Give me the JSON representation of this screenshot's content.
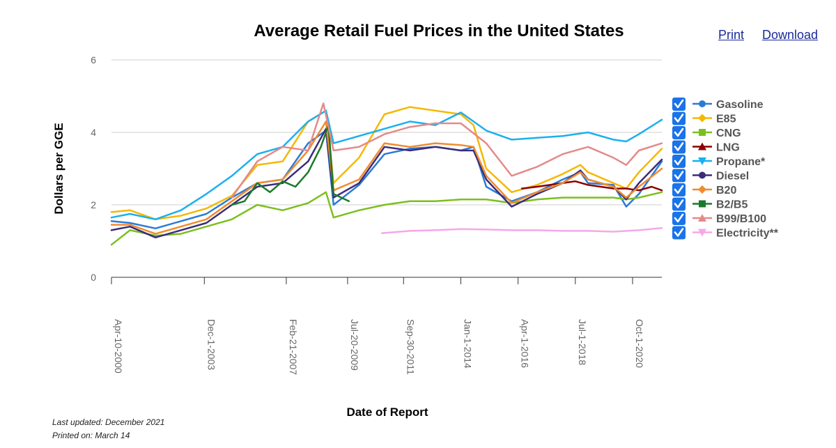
{
  "links": {
    "print": "Print",
    "download": "Download"
  },
  "footer": {
    "updated": "Last updated: December 2021",
    "printed": "Printed on: March 14"
  },
  "chart_data": {
    "type": "line",
    "title": "Average Retail Fuel Prices in the United States",
    "xlabel": "Date of Report",
    "ylabel": "Dollars per GGE",
    "ylim": [
      0,
      6
    ],
    "yticks": [
      0,
      2,
      4,
      6
    ],
    "xlim": [
      2000.27,
      2021.9
    ],
    "xticks": [
      {
        "label": "Apr-10-2000",
        "t": 2000.27
      },
      {
        "label": "Dec-1-2003",
        "t": 2003.92
      },
      {
        "label": "Feb-21-2007",
        "t": 2007.14
      },
      {
        "label": "Jul-20-2009",
        "t": 2009.55
      },
      {
        "label": "Sep-30-2011",
        "t": 2011.75
      },
      {
        "label": "Jan-1-2014",
        "t": 2014.0
      },
      {
        "label": "Apr-1-2016",
        "t": 2016.25
      },
      {
        "label": "Jul-1-2018",
        "t": 2018.5
      },
      {
        "label": "Oct-1-2020",
        "t": 2020.75
      }
    ],
    "grid": true,
    "legend_position": "right",
    "series": [
      {
        "name": "Gasoline",
        "color": "#2b7bd6",
        "marker": "circle",
        "checked": true,
        "x": [
          2000.27,
          2001,
          2002,
          2003,
          2004,
          2005,
          2006,
          2007,
          2008,
          2008.7,
          2009,
          2010,
          2011,
          2012,
          2013,
          2014,
          2014.5,
          2015,
          2016,
          2017,
          2018,
          2018.7,
          2019,
          2020,
          2020.5,
          2021,
          2021.9
        ],
        "y": [
          1.55,
          1.5,
          1.35,
          1.55,
          1.75,
          2.2,
          2.6,
          2.7,
          3.7,
          4.05,
          2.0,
          2.55,
          3.4,
          3.55,
          3.6,
          3.5,
          3.6,
          2.5,
          2.1,
          2.35,
          2.7,
          2.9,
          2.6,
          2.55,
          1.95,
          2.3,
          3.2
        ]
      },
      {
        "name": "E85",
        "color": "#f5b800",
        "marker": "diamond",
        "checked": true,
        "x": [
          2000.27,
          2001,
          2002,
          2003,
          2004,
          2005,
          2006,
          2007,
          2008,
          2008.7,
          2009,
          2010,
          2011,
          2012,
          2013,
          2014,
          2014.5,
          2015,
          2016,
          2017,
          2018,
          2018.7,
          2019,
          2020,
          2020.5,
          2021,
          2021.9
        ],
        "y": [
          1.8,
          1.85,
          1.6,
          1.7,
          1.9,
          2.25,
          3.1,
          3.2,
          4.3,
          4.6,
          2.6,
          3.3,
          4.5,
          4.7,
          4.6,
          4.5,
          4.2,
          3.0,
          2.35,
          2.55,
          2.85,
          3.1,
          2.9,
          2.6,
          2.45,
          2.9,
          3.55
        ]
      },
      {
        "name": "CNG",
        "color": "#7cbf1e",
        "marker": "square",
        "checked": true,
        "x": [
          2000.27,
          2001,
          2002,
          2003,
          2004,
          2005,
          2006,
          2007,
          2008,
          2008.7,
          2009,
          2010,
          2011,
          2012,
          2013,
          2014,
          2015,
          2016,
          2017,
          2018,
          2019,
          2020,
          2020.5,
          2021,
          2021.9
        ],
        "y": [
          0.9,
          1.3,
          1.15,
          1.2,
          1.4,
          1.6,
          2.0,
          1.85,
          2.05,
          2.35,
          1.65,
          1.85,
          2.0,
          2.1,
          2.1,
          2.15,
          2.15,
          2.05,
          2.15,
          2.2,
          2.2,
          2.2,
          2.15,
          2.2,
          2.35
        ]
      },
      {
        "name": "LNG",
        "color": "#8b0000",
        "marker": "triangle",
        "checked": true,
        "x": [
          2016.4,
          2017,
          2017.5,
          2018,
          2018.5,
          2019,
          2019.5,
          2020,
          2020.5,
          2021,
          2021.5,
          2021.9
        ],
        "y": [
          2.45,
          2.5,
          2.55,
          2.6,
          2.65,
          2.55,
          2.5,
          2.45,
          2.45,
          2.4,
          2.5,
          2.4
        ]
      },
      {
        "name": "Propane*",
        "color": "#1ab0ef",
        "marker": "triangle-down",
        "checked": true,
        "x": [
          2000.27,
          2001,
          2002,
          2003,
          2004,
          2005,
          2006,
          2007,
          2008,
          2008.7,
          2009,
          2010,
          2011,
          2012,
          2013,
          2014,
          2015,
          2016,
          2017,
          2018,
          2019,
          2020,
          2020.5,
          2021,
          2021.9
        ],
        "y": [
          1.65,
          1.75,
          1.6,
          1.85,
          2.3,
          2.8,
          3.4,
          3.6,
          4.3,
          4.6,
          3.7,
          3.9,
          4.1,
          4.3,
          4.2,
          4.55,
          4.05,
          3.8,
          3.85,
          3.9,
          4.0,
          3.8,
          3.75,
          3.95,
          4.35
        ]
      },
      {
        "name": "Diesel",
        "color": "#3c2c7a",
        "marker": "circle",
        "checked": true,
        "x": [
          2000.27,
          2001,
          2002,
          2003,
          2004,
          2005,
          2006,
          2007,
          2008,
          2008.7,
          2009,
          2010,
          2011,
          2012,
          2013,
          2014,
          2014.5,
          2015,
          2016,
          2017,
          2018,
          2018.7,
          2019,
          2020,
          2020.5,
          2021,
          2021.9
        ],
        "y": [
          1.3,
          1.4,
          1.1,
          1.3,
          1.5,
          2.0,
          2.5,
          2.6,
          3.2,
          4.1,
          2.2,
          2.6,
          3.6,
          3.5,
          3.6,
          3.5,
          3.5,
          2.7,
          1.95,
          2.3,
          2.6,
          2.95,
          2.7,
          2.5,
          2.15,
          2.6,
          3.25
        ]
      },
      {
        "name": "B20",
        "color": "#f08c2e",
        "marker": "diamond",
        "checked": true,
        "x": [
          2000.27,
          2001,
          2002,
          2003,
          2004,
          2005,
          2006,
          2007,
          2008,
          2008.7,
          2009,
          2010,
          2011,
          2012,
          2013,
          2014,
          2014.5,
          2015,
          2016,
          2017,
          2018,
          2018.7,
          2019,
          2020,
          2020.5,
          2021,
          2021.9
        ],
        "y": [
          1.45,
          1.45,
          1.2,
          1.4,
          1.6,
          2.1,
          2.6,
          2.7,
          3.5,
          4.3,
          2.4,
          2.7,
          3.7,
          3.6,
          3.7,
          3.65,
          3.6,
          2.8,
          2.05,
          2.35,
          2.6,
          2.9,
          2.7,
          2.5,
          2.2,
          2.5,
          3.0
        ]
      },
      {
        "name": "B2/B5",
        "color": "#1a7a2a",
        "marker": "square",
        "checked": true,
        "x": [
          2005,
          2005.5,
          2006,
          2006.5,
          2007,
          2007.5,
          2008,
          2008.5,
          2008.8,
          2009,
          2009.6
        ],
        "y": [
          2.0,
          2.1,
          2.6,
          2.35,
          2.65,
          2.5,
          2.9,
          3.6,
          4.2,
          2.3,
          2.1
        ]
      },
      {
        "name": "B99/B100",
        "color": "#e48a8a",
        "marker": "triangle",
        "checked": true,
        "x": [
          2005,
          2006,
          2007,
          2008,
          2008.6,
          2009,
          2010,
          2011,
          2012,
          2013,
          2014,
          2015,
          2016,
          2017,
          2018,
          2019,
          2020,
          2020.5,
          2021,
          2021.9
        ],
        "y": [
          2.2,
          3.2,
          3.6,
          3.5,
          4.8,
          3.5,
          3.6,
          3.95,
          4.15,
          4.25,
          4.25,
          3.7,
          2.8,
          3.05,
          3.4,
          3.6,
          3.3,
          3.1,
          3.5,
          3.7
        ]
      },
      {
        "name": "Electricity**",
        "color": "#f5a8e8",
        "marker": "triangle-down",
        "checked": true,
        "x": [
          2010.9,
          2012,
          2013,
          2014,
          2015,
          2016,
          2017,
          2018,
          2019,
          2020,
          2021,
          2021.9
        ],
        "y": [
          1.22,
          1.28,
          1.3,
          1.33,
          1.32,
          1.3,
          1.3,
          1.28,
          1.28,
          1.26,
          1.3,
          1.36
        ]
      }
    ]
  }
}
